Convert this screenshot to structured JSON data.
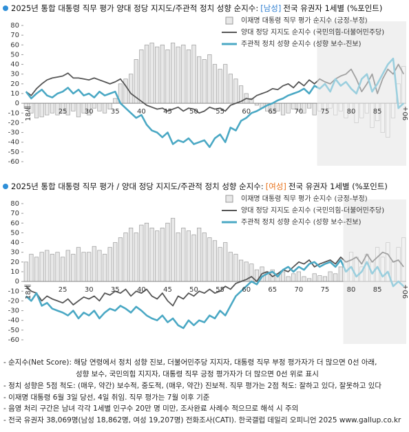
{
  "chart_data": [
    {
      "type": "combo",
      "title": "2025년 통합 대통령 직무 평가  양대 정당 지지도/주관적 정치 성향 순지수:",
      "title_tag": "[남성]",
      "title_tag_color": "#2f7fd1",
      "title_suffix": "전국 유권자 1세별 (%포인트)",
      "categories": [
        "18세",
        null,
        null,
        null,
        null,
        null,
        null,
        "25",
        null,
        null,
        null,
        null,
        "30",
        null,
        null,
        null,
        null,
        "35",
        null,
        null,
        null,
        null,
        "40",
        null,
        null,
        null,
        null,
        "45",
        null,
        null,
        null,
        null,
        "50",
        null,
        null,
        null,
        null,
        "55",
        null,
        null,
        null,
        null,
        "60",
        null,
        null,
        null,
        null,
        "65",
        null,
        null,
        null,
        null,
        "70",
        null,
        null,
        null,
        null,
        "75",
        null,
        null,
        null,
        null,
        "80",
        null,
        null,
        null,
        null,
        "85",
        null,
        null,
        null,
        null,
        "90+"
      ],
      "shaded_from": 74,
      "ylim": [
        -60,
        80
      ],
      "yticks": [
        80,
        70,
        60,
        50,
        40,
        30,
        20,
        10,
        0,
        -10,
        -20,
        -30,
        -40,
        -50,
        -60
      ],
      "grid": false,
      "series": [
        {
          "name": "이재명 대통령 직무 평가 순지수 (긍정-부정)",
          "type": "bar",
          "color": "#e8e8e8",
          "values": [
            -5,
            -10,
            -15,
            -14,
            -12,
            -10,
            -12,
            -10,
            -12,
            -8,
            -14,
            -10,
            -12,
            -5,
            -8,
            -10,
            -6,
            5,
            20,
            25,
            30,
            45,
            55,
            60,
            62,
            58,
            60,
            55,
            62,
            58,
            60,
            55,
            60,
            48,
            45,
            50,
            40,
            35,
            40,
            30,
            25,
            18,
            10,
            5,
            -2,
            -5,
            -8,
            -10,
            -8,
            -12,
            -10,
            -6,
            -8,
            -10,
            -5,
            -12,
            -8,
            -10,
            -5,
            -12,
            -8,
            -15,
            -10,
            -20,
            -15,
            -10,
            -25,
            -18,
            -30,
            -35,
            -15,
            20,
            38
          ]
        },
        {
          "name": "양대 정당 지지도 순지수 (국민의힘-더불어민주당)",
          "type": "line",
          "color": "#555555",
          "values": [
            12,
            8,
            15,
            20,
            24,
            26,
            27,
            28,
            31,
            26,
            26,
            25,
            24,
            26,
            24,
            22,
            20,
            22,
            25,
            18,
            10,
            6,
            2,
            -2,
            -4,
            -6,
            -5,
            -8,
            -6,
            -4,
            -8,
            -5,
            -6,
            -10,
            -8,
            -4,
            -6,
            -5,
            -8,
            -2,
            0,
            2,
            5,
            4,
            8,
            10,
            12,
            15,
            14,
            18,
            20,
            16,
            22,
            18,
            24,
            20,
            25,
            22,
            20,
            25,
            28,
            30,
            35,
            25,
            12,
            20,
            30,
            10,
            25,
            35,
            30,
            40,
            30
          ]
        },
        {
          "name": "주관적 정치 성향 순지수 (성향 보수-진보)",
          "type": "line",
          "color": "#4aa8c4",
          "values": [
            12,
            5,
            10,
            14,
            8,
            6,
            10,
            12,
            16,
            10,
            14,
            8,
            10,
            6,
            12,
            8,
            10,
            12,
            0,
            -5,
            -10,
            -15,
            -12,
            -22,
            -28,
            -30,
            -35,
            -30,
            -42,
            -38,
            -40,
            -36,
            -42,
            -40,
            -38,
            -45,
            -36,
            -32,
            -40,
            -25,
            -28,
            -18,
            -15,
            -10,
            -8,
            -5,
            -2,
            0,
            3,
            5,
            8,
            10,
            12,
            15,
            10,
            18,
            15,
            20,
            12,
            25,
            18,
            22,
            15,
            10,
            25,
            30,
            12,
            20,
            30,
            40,
            46,
            -5,
            0
          ]
        }
      ]
    },
    {
      "type": "combo",
      "title": "2025년 통합 대통령 직무 평가 / 양대 정당 지지도/주관적 정치 성향 순지수:",
      "title_tag": "[여성]",
      "title_tag_color": "#e8731c",
      "title_suffix": "전국 유권자 1세별 (%포인트)",
      "categories": [
        "18세",
        null,
        null,
        null,
        null,
        null,
        null,
        "25",
        null,
        null,
        null,
        null,
        "30",
        null,
        null,
        null,
        null,
        "35",
        null,
        null,
        null,
        null,
        "40",
        null,
        null,
        null,
        null,
        "45",
        null,
        null,
        null,
        null,
        "50",
        null,
        null,
        null,
        null,
        "55",
        null,
        null,
        null,
        null,
        "60",
        null,
        null,
        null,
        null,
        "65",
        null,
        null,
        null,
        null,
        "70",
        null,
        null,
        null,
        null,
        "75",
        null,
        null,
        null,
        null,
        "80",
        null,
        null,
        null,
        null,
        "85",
        null,
        null,
        null,
        null,
        "90+"
      ],
      "shaded_from": 79,
      "ylim": [
        -60,
        80
      ],
      "yticks": [
        80,
        70,
        60,
        50,
        40,
        30,
        20,
        10,
        0,
        -10,
        -20,
        -30,
        -40,
        -50,
        -60
      ],
      "grid": false,
      "series": [
        {
          "name": "이재명 대통령 직무 평가 순지수 (긍정-부정)",
          "type": "bar",
          "color": "#e8e8e8",
          "values": [
            20,
            28,
            25,
            30,
            32,
            28,
            30,
            25,
            32,
            28,
            35,
            30,
            30,
            36,
            32,
            28,
            35,
            40,
            45,
            50,
            55,
            50,
            58,
            60,
            55,
            52,
            55,
            60,
            65,
            50,
            55,
            52,
            48,
            55,
            50,
            45,
            42,
            35,
            40,
            30,
            28,
            22,
            20,
            18,
            12,
            15,
            10,
            12,
            8,
            10,
            5,
            8,
            10,
            5,
            3,
            8,
            6,
            5,
            10,
            8,
            15,
            20,
            30,
            25,
            15,
            28,
            20,
            35,
            25,
            40,
            20,
            35,
            45
          ]
        },
        {
          "name": "양대 정당 지지도 순지수 (국민의힘-더불어민주당)",
          "type": "line",
          "color": "#555555",
          "values": [
            -5,
            -10,
            -12,
            -20,
            -15,
            -18,
            -20,
            -22,
            -18,
            -24,
            -20,
            -16,
            -18,
            -15,
            -20,
            -12,
            -14,
            -10,
            -12,
            -8,
            -15,
            -10,
            -12,
            -8,
            -15,
            -18,
            -12,
            -20,
            -25,
            -15,
            -18,
            -12,
            -15,
            -10,
            -12,
            -8,
            -12,
            -10,
            -5,
            -8,
            -2,
            0,
            2,
            5,
            0,
            8,
            10,
            5,
            8,
            12,
            10,
            15,
            20,
            18,
            22,
            15,
            18,
            20,
            22,
            18,
            25,
            20,
            22,
            25,
            18,
            28,
            20,
            25,
            30,
            28,
            20,
            22,
            15
          ]
        },
        {
          "name": "주관적 정치 성향 순지수 (성향 보수-진보)",
          "type": "line",
          "color": "#4aa8c4",
          "values": [
            -15,
            -20,
            -12,
            -25,
            -22,
            -28,
            -30,
            -32,
            -35,
            -30,
            -38,
            -32,
            -35,
            -30,
            -38,
            -32,
            -28,
            -30,
            -25,
            -28,
            -32,
            -26,
            -30,
            -35,
            -38,
            -40,
            -35,
            -42,
            -38,
            -45,
            -48,
            -40,
            -45,
            -40,
            -42,
            -35,
            -38,
            -30,
            -35,
            -25,
            -15,
            -10,
            -5,
            0,
            -3,
            5,
            8,
            10,
            5,
            12,
            15,
            10,
            15,
            12,
            18,
            20,
            15,
            18,
            20,
            15,
            22,
            10,
            15,
            5,
            10,
            20,
            8,
            15,
            5,
            10,
            -5,
            0,
            -5
          ]
        }
      ]
    }
  ],
  "notes": [
    "- 순지수(Net Score): 해당 연령에서 정치 성향 진보, 더불어민주당 지지자, 대통령 직무 부정 평가자가 더 많으면 0선 아래,",
    "성향 보수, 국민의힘 지지자, 대통령 직무 긍정 평가자가 더 많으면 0선 위로 표시",
    "- 정치 성향은 5점 척도: (매우, 약간) 보수적, 중도적, (매우, 약간) 진보적. 직무 평가는 2점 척도: 잘하고 있다, 잘못하고 있다",
    "- 이재명 대통령 6월 3일 당선, 4일 취임. 직무 평가는 7월 이후 기준",
    "- 음영 처리 구간은 남녀 각각 1세별 인구수 20만 명 미만, 조사완료 사례수 적으므로 해석 시 주의",
    "- 전국 유권자 38,069명(남성 18,862명, 여성 19,207명) 전화조사(CATI). 한국갤럽 데일리 오피니언 2025 www.gallup.co.kr"
  ]
}
